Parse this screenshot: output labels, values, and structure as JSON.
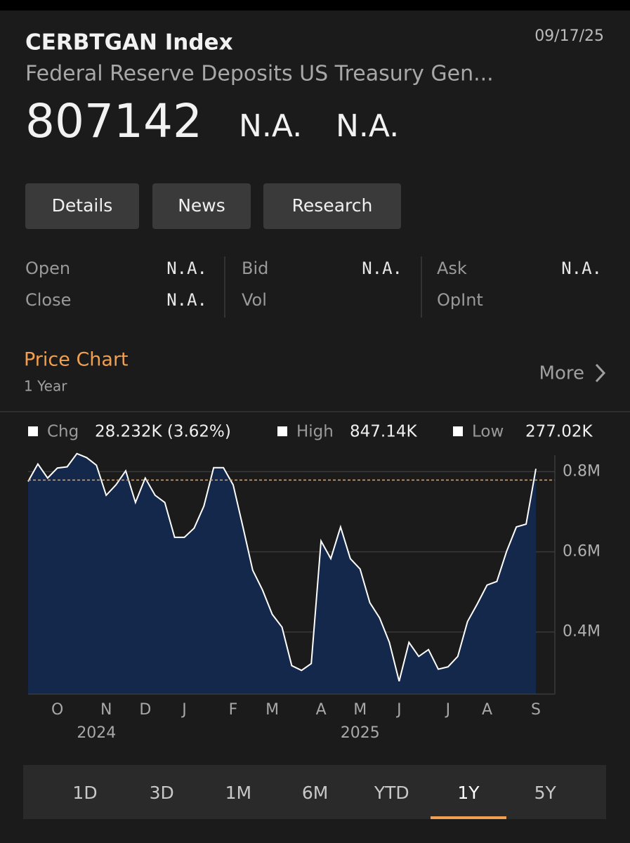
{
  "header": {
    "ticker": "CERBTGAN Index",
    "description": "Federal Reserve Deposits US Treasury Gen...",
    "date": "09/17/25",
    "last": "807142",
    "change": "N.A.",
    "pct_change": "N.A."
  },
  "tabs": [
    "Details",
    "News",
    "Research"
  ],
  "quote": [
    {
      "label": "Open",
      "value": "N.A."
    },
    {
      "label": "Bid",
      "value": "N.A."
    },
    {
      "label": "Ask",
      "value": "N.A."
    },
    {
      "label": "Close",
      "value": "N.A."
    },
    {
      "label": "Vol"
    },
    {
      "label": "OpInt"
    }
  ],
  "chart_section": {
    "title": "Price Chart",
    "period": "1 Year",
    "more": "More"
  },
  "chart_data": {
    "type": "area",
    "stats": [
      {
        "label": "Chg",
        "value": "28.232K (3.62%)"
      },
      {
        "label": "High",
        "value": "847.14K"
      },
      {
        "label": "Low",
        "value": "277.02K"
      }
    ],
    "categories": [
      null,
      null,
      null,
      "O",
      null,
      null,
      null,
      null,
      "N",
      null,
      null,
      null,
      "D",
      null,
      null,
      null,
      "J",
      null,
      null,
      null,
      null,
      "F",
      null,
      null,
      null,
      "M",
      null,
      null,
      null,
      null,
      "A",
      null,
      null,
      null,
      "M",
      null,
      null,
      null,
      "J",
      null,
      null,
      null,
      null,
      "J",
      null,
      null,
      null,
      "A",
      null,
      null,
      null,
      null,
      "S"
    ],
    "year_labels": [
      null,
      null,
      null,
      null,
      null,
      null,
      null,
      "2024",
      null,
      null,
      null,
      null,
      null,
      null,
      null,
      null,
      null,
      null,
      null,
      null,
      null,
      null,
      null,
      null,
      null,
      null,
      null,
      null,
      null,
      null,
      null,
      null,
      null,
      null,
      "2025",
      null,
      null,
      null,
      null,
      null,
      null,
      null,
      null,
      null,
      null,
      null,
      null,
      null,
      null,
      null,
      null,
      null,
      null
    ],
    "series": [
      {
        "color": "#ffffff",
        "fill": "#13284a",
        "values": [
          775500,
          819000,
          784000,
          809000,
          812000,
          845000,
          835000,
          816000,
          741000,
          767000,
          802000,
          723000,
          784000,
          741000,
          723000,
          636000,
          636000,
          659000,
          714000,
          810000,
          810000,
          767000,
          662000,
          554000,
          505000,
          444000,
          412000,
          316000,
          304000,
          321000,
          627000,
          583000,
          662000,
          583000,
          557000,
          473000,
          435000,
          374000,
          277000,
          374000,
          339000,
          356000,
          307000,
          313000,
          339000,
          426000,
          470000,
          517000,
          526000,
          601000,
          662000,
          669000,
          807142
        ]
      }
    ],
    "reference_line": {
      "value": 779000,
      "color": "#f0a050"
    },
    "ylim": [
      245000,
      855000
    ],
    "yticks": [
      {
        "value": 400000,
        "label": "0.4M"
      },
      {
        "value": 600000,
        "label": "0.6M"
      },
      {
        "value": 800000,
        "label": "0.8M"
      }
    ],
    "grid": true
  },
  "ranges": [
    "1D",
    "3D",
    "1M",
    "6M",
    "YTD",
    "1Y",
    "5Y"
  ],
  "selected_range": 5
}
